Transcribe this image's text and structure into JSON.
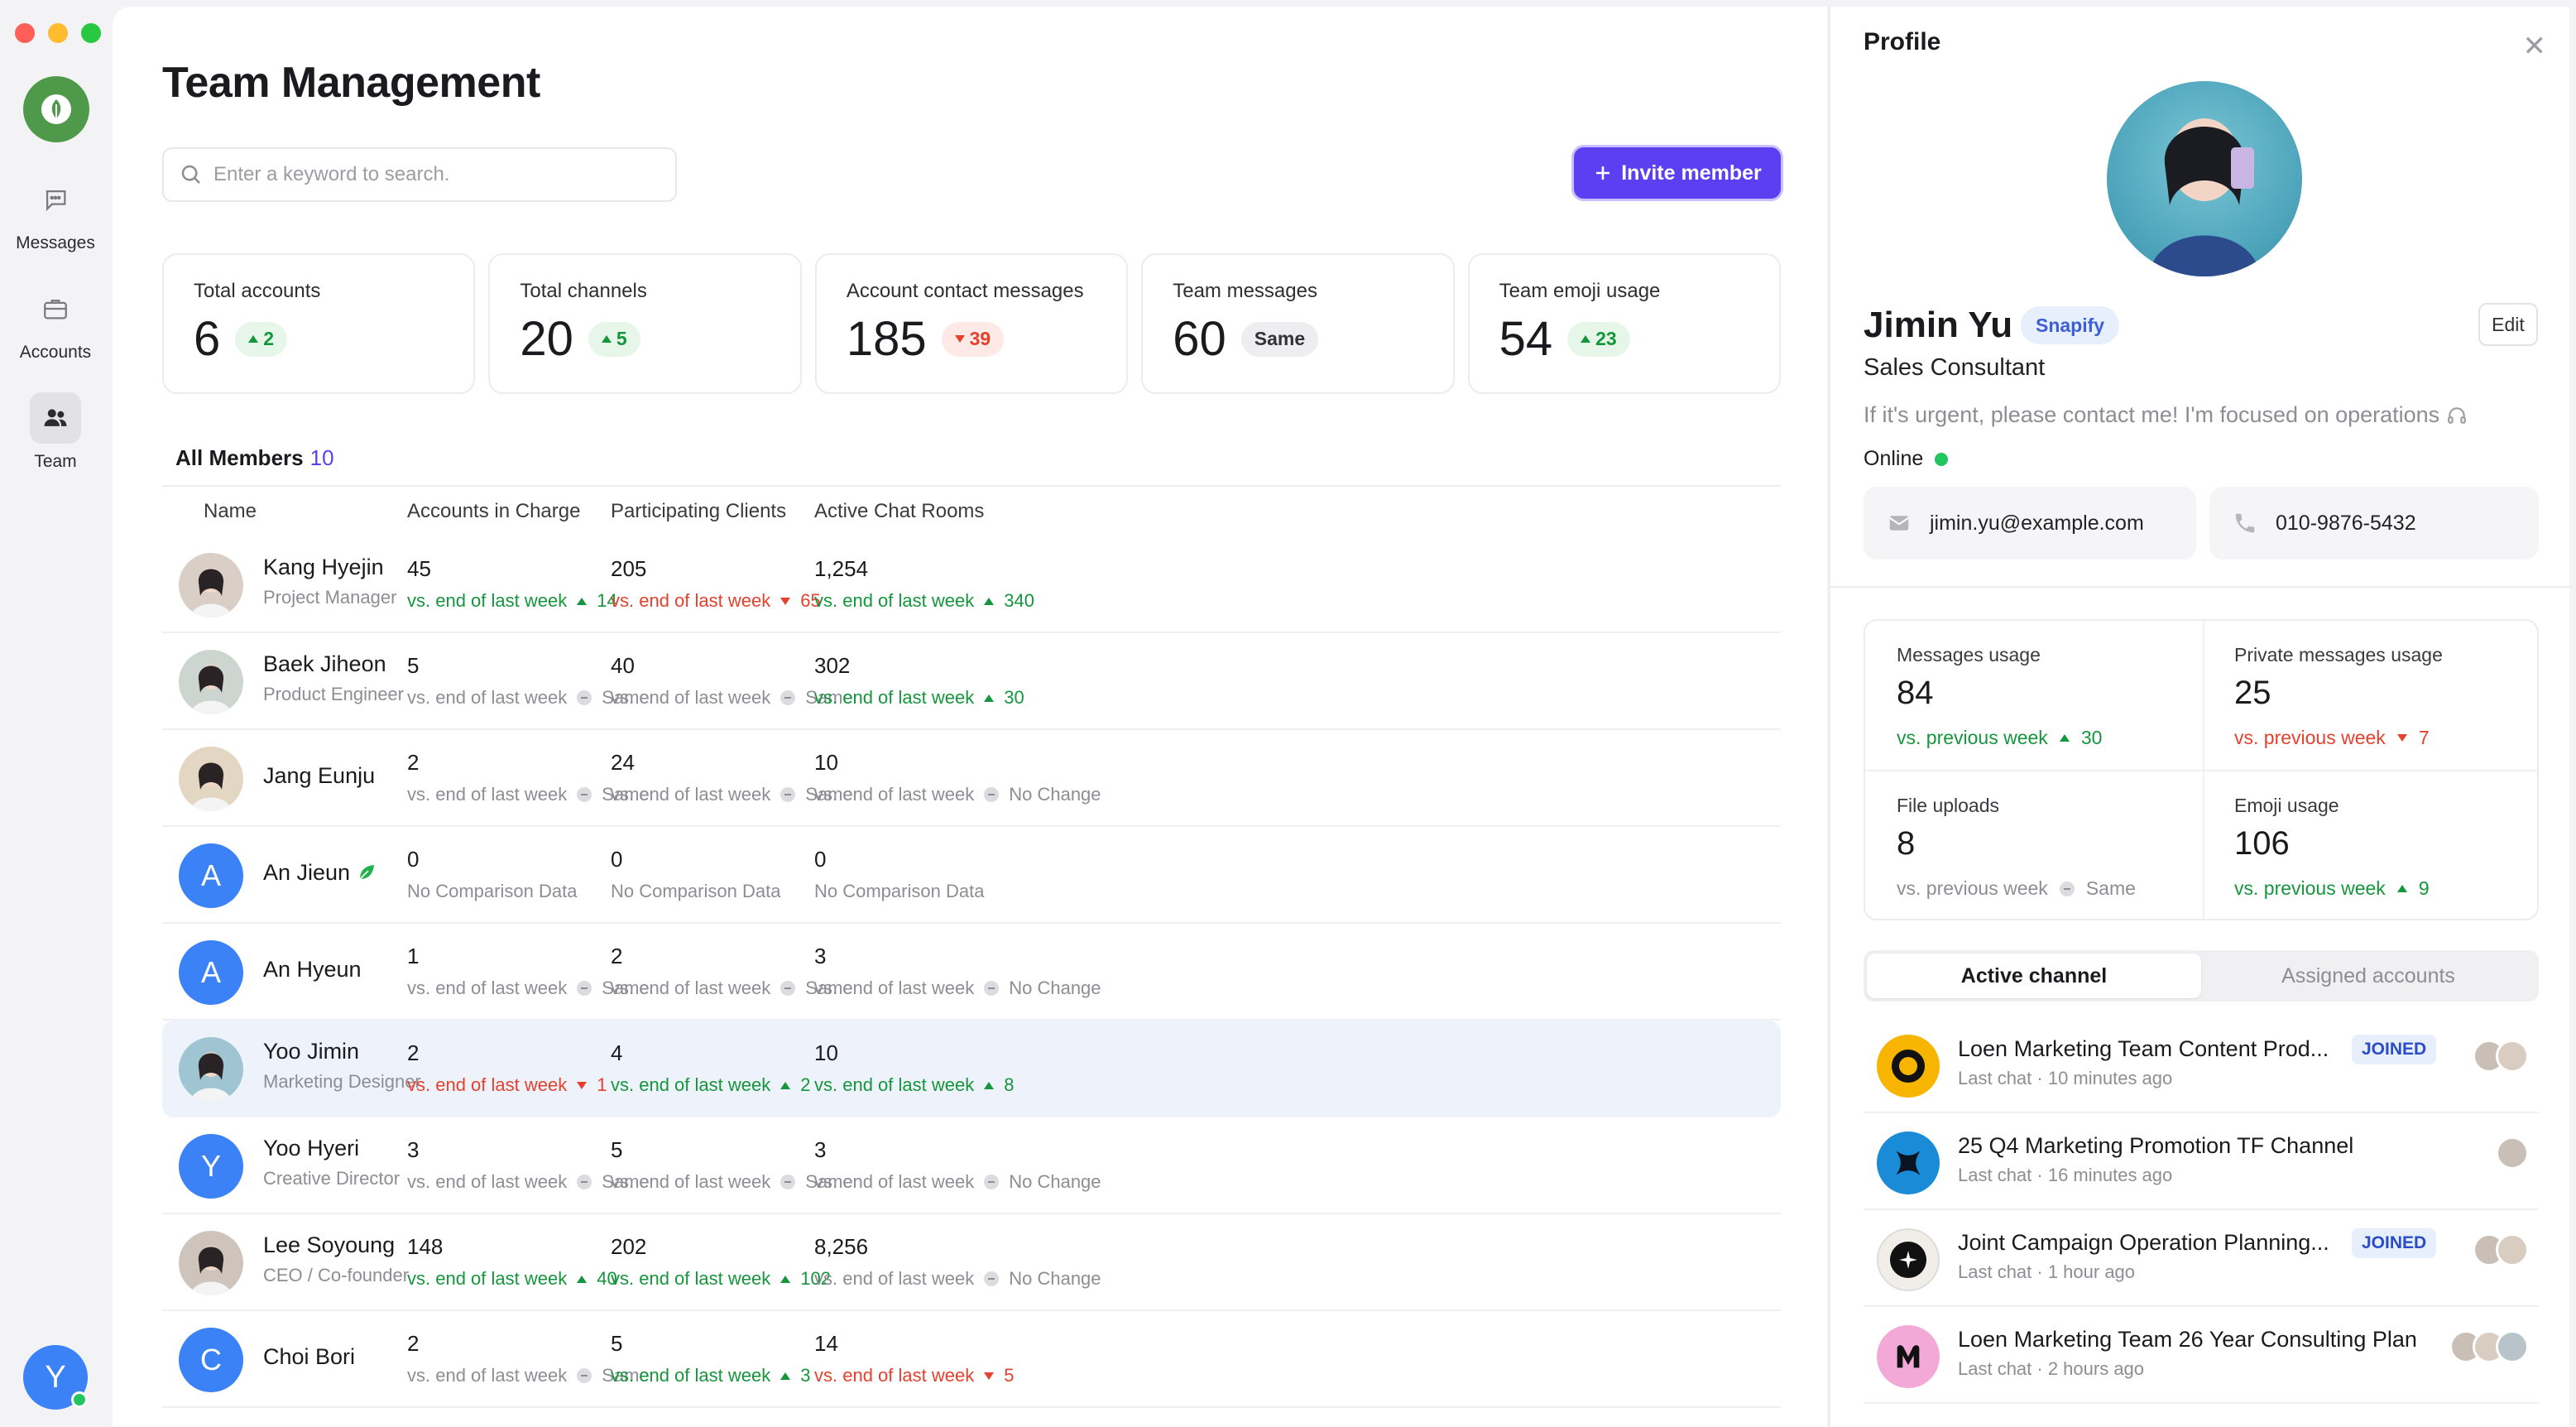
{
  "colors": {
    "accent": "#5b3ff0",
    "up": "#15963c",
    "down": "#e5412e",
    "neutral": "#8d8d94",
    "logo_green": "#4f9a4a",
    "avatar_blue": "#3b82f6",
    "online": "#22c55e"
  },
  "window_controls": [
    "close",
    "minimize",
    "maximize"
  ],
  "sidebar": {
    "logo_icon": "leaf-logo-icon",
    "items": [
      {
        "label": "Messages",
        "icon": "chat-bubble-icon",
        "active": false
      },
      {
        "label": "Accounts",
        "icon": "briefcase-icon",
        "active": false
      },
      {
        "label": "Team",
        "icon": "people-icon",
        "active": true
      }
    ],
    "user_initial": "Y"
  },
  "main": {
    "title": "Team Management",
    "search_placeholder": "Enter a keyword to search.",
    "invite_label": "Invite member",
    "stats": [
      {
        "label": "Total accounts",
        "value": "6",
        "badge": "2",
        "trend": "up"
      },
      {
        "label": "Total channels",
        "value": "20",
        "badge": "5",
        "trend": "up"
      },
      {
        "label": "Account contact messages",
        "value": "185",
        "badge": "39",
        "trend": "down"
      },
      {
        "label": "Team messages",
        "value": "60",
        "badge": "Same",
        "trend": "same"
      },
      {
        "label": "Team emoji usage",
        "value": "54",
        "badge": "23",
        "trend": "up"
      }
    ],
    "members_label": "All Members",
    "members_count": "10",
    "columns": [
      "Name",
      "Accounts in Charge",
      "Participating Clients",
      "Active Chat Rooms"
    ],
    "rows": [
      {
        "name": "Kang Hyejin",
        "role": "Project Manager",
        "avatar": "photo",
        "initial": "",
        "cells": [
          {
            "value": "45",
            "label": "vs. end of last week",
            "delta": "14",
            "trend": "up"
          },
          {
            "value": "205",
            "label": "vs. end of last week",
            "delta": "65",
            "trend": "down"
          },
          {
            "value": "1,254",
            "label": "vs. end of last week",
            "delta": "340",
            "trend": "up"
          }
        ]
      },
      {
        "name": "Baek Jiheon",
        "role": "Product Engineer",
        "avatar": "photo",
        "initial": "",
        "cells": [
          {
            "value": "5",
            "label": "vs. end of last week",
            "delta": "Same",
            "trend": "neutral"
          },
          {
            "value": "40",
            "label": "vs. end of last week",
            "delta": "Same",
            "trend": "neutral"
          },
          {
            "value": "302",
            "label": "vs. end of last week",
            "delta": "30",
            "trend": "up"
          }
        ]
      },
      {
        "name": "Jang Eunju",
        "role": "",
        "avatar": "photo",
        "initial": "",
        "cells": [
          {
            "value": "2",
            "label": "vs. end of last week",
            "delta": "Same",
            "trend": "neutral"
          },
          {
            "value": "24",
            "label": "vs. end of last week",
            "delta": "Same",
            "trend": "neutral"
          },
          {
            "value": "10",
            "label": "vs. end of last week",
            "delta": "No Change",
            "trend": "neutral"
          }
        ]
      },
      {
        "name": "An Jieun",
        "role": "",
        "avatar": "letter",
        "initial": "A",
        "leaf": true,
        "cells": [
          {
            "value": "0",
            "label": "No Comparison Data",
            "delta": "",
            "trend": "none"
          },
          {
            "value": "0",
            "label": "No Comparison Data",
            "delta": "",
            "trend": "none"
          },
          {
            "value": "0",
            "label": "No Comparison Data",
            "delta": "",
            "trend": "none"
          }
        ]
      },
      {
        "name": "An Hyeun",
        "role": "",
        "avatar": "letter",
        "initial": "A",
        "cells": [
          {
            "value": "1",
            "label": "vs. end of last week",
            "delta": "Same",
            "trend": "neutral"
          },
          {
            "value": "2",
            "label": "vs. end of last week",
            "delta": "Same",
            "trend": "neutral"
          },
          {
            "value": "3",
            "label": "vs. end of last week",
            "delta": "No Change",
            "trend": "neutral"
          }
        ]
      },
      {
        "name": "Yoo Jimin",
        "role": "Marketing Designer",
        "avatar": "photo",
        "initial": "",
        "selected": true,
        "cells": [
          {
            "value": "2",
            "label": "vs. end of last week",
            "delta": "1",
            "trend": "down"
          },
          {
            "value": "4",
            "label": "vs. end of last week",
            "delta": "2",
            "trend": "up"
          },
          {
            "value": "10",
            "label": "vs. end of last week",
            "delta": "8",
            "trend": "up"
          }
        ]
      },
      {
        "name": "Yoo Hyeri",
        "role": "Creative Director",
        "avatar": "letter",
        "initial": "Y",
        "cells": [
          {
            "value": "3",
            "label": "vs. end of last week",
            "delta": "Same",
            "trend": "neutral"
          },
          {
            "value": "5",
            "label": "vs. end of last week",
            "delta": "Same",
            "trend": "neutral"
          },
          {
            "value": "3",
            "label": "vs. end of last week",
            "delta": "No Change",
            "trend": "neutral"
          }
        ]
      },
      {
        "name": "Lee Soyoung",
        "role": "CEO / Co-founder",
        "avatar": "photo",
        "initial": "",
        "cells": [
          {
            "value": "148",
            "label": "vs. end of last week",
            "delta": "40",
            "trend": "up"
          },
          {
            "value": "202",
            "label": "vs. end of last week",
            "delta": "102",
            "trend": "up"
          },
          {
            "value": "8,256",
            "label": "vs. end of last week",
            "delta": "No Change",
            "trend": "neutral"
          }
        ]
      },
      {
        "name": "Choi Bori",
        "role": "",
        "avatar": "letter",
        "initial": "C",
        "cells": [
          {
            "value": "2",
            "label": "vs. end of last week",
            "delta": "Same",
            "trend": "neutral"
          },
          {
            "value": "5",
            "label": "vs. end of last week",
            "delta": "3",
            "trend": "up"
          },
          {
            "value": "14",
            "label": "vs. end of last week",
            "delta": "5",
            "trend": "down"
          }
        ]
      }
    ]
  },
  "profile": {
    "title": "Profile",
    "name": "Jimin Yu",
    "org": "Snapify",
    "edit_label": "Edit",
    "job": "Sales Consultant",
    "status_message": "If it's urgent, please contact me! I'm focused on operations",
    "presence": "Online",
    "email": "jimin.yu@example.com",
    "phone": "010-9876-5432",
    "usage": [
      {
        "label": "Messages usage",
        "value": "84",
        "cmp": "vs. previous week",
        "delta": "30",
        "trend": "up"
      },
      {
        "label": "Private messages usage",
        "value": "25",
        "cmp": "vs. previous week",
        "delta": "7",
        "trend": "down"
      },
      {
        "label": "File uploads",
        "value": "8",
        "cmp": "vs. previous week",
        "delta": "Same",
        "trend": "neutral"
      },
      {
        "label": "Emoji usage",
        "value": "106",
        "cmp": "vs. previous week",
        "delta": "9",
        "trend": "up"
      }
    ],
    "tabs": [
      {
        "label": "Active channel",
        "active": true
      },
      {
        "label": "Assigned accounts",
        "active": false
      }
    ],
    "channels": [
      {
        "name": "Loen Marketing Team Content Prod...",
        "meta": "Last chat · 10 minutes ago",
        "joined": "JOINED",
        "logo": "ring-logo",
        "avatars": 2
      },
      {
        "name": "25 Q4 Marketing Promotion TF Channel",
        "meta": "Last chat · 16 minutes ago",
        "joined": "",
        "logo": "x-logo",
        "avatars": 1
      },
      {
        "name": "Joint Campaign Operation Planning...",
        "meta": "Last chat · 1 hour ago",
        "joined": "JOINED",
        "logo": "star-logo",
        "avatars": 2
      },
      {
        "name": "Loen Marketing Team 26 Year Consulting Plan",
        "meta": "Last chat · 2 hours ago",
        "joined": "",
        "logo": "m-logo",
        "avatars": 3
      }
    ]
  }
}
